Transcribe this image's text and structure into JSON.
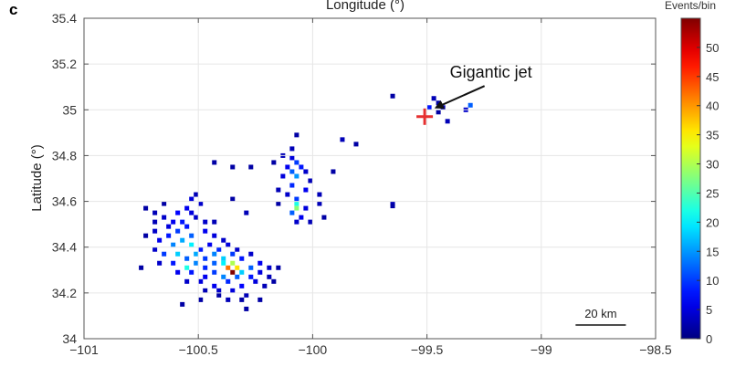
{
  "chart_data": {
    "type": "heatmap",
    "panel_label": "c",
    "xlabel": "Longitude (°)",
    "ylabel": "Latitude (°)",
    "xlim": [
      -101,
      -98.5
    ],
    "ylim": [
      34,
      35.4
    ],
    "xticks": [
      -101,
      -100.5,
      -100,
      -99.5,
      -99,
      -98.5
    ],
    "yticks": [
      34,
      34.2,
      34.4,
      34.6,
      34.8,
      35,
      35.2,
      35.4
    ],
    "x_tick_labels": [
      "−101",
      "−100.5",
      "−100",
      "−99.5",
      "−99",
      "−98.5"
    ],
    "y_tick_labels": [
      "34",
      "34.2",
      "34.4",
      "34.6",
      "34.8",
      "35",
      "35.2",
      "35.4"
    ],
    "grid": true,
    "colorbar": {
      "title": "Events/bin",
      "range": [
        0,
        55
      ],
      "ticks": [
        0,
        5,
        10,
        15,
        20,
        25,
        30,
        35,
        40,
        45,
        50
      ],
      "tick_labels": [
        "0",
        "5",
        "10",
        "15",
        "20",
        "25",
        "30",
        "35",
        "40",
        "45",
        "50"
      ],
      "colormap": "jet"
    },
    "bin_size_deg": 0.02,
    "bins": [
      [
        -99.65,
        35.06,
        2
      ],
      [
        -99.47,
        35.05,
        3
      ],
      [
        -99.45,
        35.03,
        2
      ],
      [
        -99.43,
        35.01,
        3
      ],
      [
        -99.49,
        35.01,
        8
      ],
      [
        -99.45,
        34.99,
        2
      ],
      [
        -99.41,
        34.95,
        3
      ],
      [
        -99.31,
        35.02,
        12
      ],
      [
        -99.33,
        35.0,
        4
      ],
      [
        -99.87,
        34.87,
        3
      ],
      [
        -99.81,
        34.85,
        2
      ],
      [
        -99.65,
        34.59,
        3
      ],
      [
        -99.65,
        34.58,
        2
      ],
      [
        -100.07,
        34.89,
        2
      ],
      [
        -100.09,
        34.83,
        3
      ],
      [
        -100.13,
        34.8,
        3
      ],
      [
        -100.09,
        34.79,
        5
      ],
      [
        -100.07,
        34.77,
        10
      ],
      [
        -100.05,
        34.75,
        8
      ],
      [
        -100.11,
        34.75,
        6
      ],
      [
        -100.03,
        34.73,
        4
      ],
      [
        -100.09,
        34.73,
        12
      ],
      [
        -100.13,
        34.71,
        5
      ],
      [
        -100.07,
        34.71,
        15
      ],
      [
        -100.01,
        34.69,
        3
      ],
      [
        -100.09,
        34.67,
        9
      ],
      [
        -100.03,
        34.65,
        6
      ],
      [
        -100.11,
        34.63,
        4
      ],
      [
        -100.07,
        34.61,
        10
      ],
      [
        -100.07,
        34.59,
        22
      ],
      [
        -100.07,
        34.57,
        28
      ],
      [
        -100.09,
        34.55,
        12
      ],
      [
        -100.03,
        34.57,
        5
      ],
      [
        -99.97,
        34.59,
        3
      ],
      [
        -100.05,
        34.53,
        6
      ],
      [
        -100.07,
        34.51,
        4
      ],
      [
        -100.01,
        34.51,
        3
      ],
      [
        -99.95,
        34.53,
        2
      ],
      [
        -99.91,
        34.73,
        2
      ],
      [
        -99.97,
        34.63,
        3
      ],
      [
        -100.15,
        34.59,
        2
      ],
      [
        -100.17,
        34.77,
        2
      ],
      [
        -100.15,
        34.65,
        3
      ],
      [
        -100.43,
        34.77,
        2
      ],
      [
        -100.35,
        34.75,
        2
      ],
      [
        -100.27,
        34.75,
        2
      ],
      [
        -100.35,
        34.61,
        2
      ],
      [
        -100.29,
        34.55,
        3
      ],
      [
        -100.51,
        34.63,
        3
      ],
      [
        -100.53,
        34.61,
        5
      ],
      [
        -100.49,
        34.59,
        4
      ],
      [
        -100.55,
        34.57,
        6
      ],
      [
        -100.59,
        34.55,
        7
      ],
      [
        -100.53,
        34.55,
        5
      ],
      [
        -100.69,
        34.55,
        3
      ],
      [
        -100.65,
        34.53,
        4
      ],
      [
        -100.61,
        34.51,
        6
      ],
      [
        -100.57,
        34.51,
        8
      ],
      [
        -100.51,
        34.53,
        4
      ],
      [
        -100.69,
        34.51,
        3
      ],
      [
        -100.63,
        34.49,
        5
      ],
      [
        -100.55,
        34.49,
        8
      ],
      [
        -100.47,
        34.51,
        4
      ],
      [
        -100.43,
        34.51,
        3
      ],
      [
        -100.69,
        34.47,
        4
      ],
      [
        -100.63,
        34.45,
        8
      ],
      [
        -100.59,
        34.47,
        10
      ],
      [
        -100.53,
        34.45,
        12
      ],
      [
        -100.47,
        34.47,
        6
      ],
      [
        -100.43,
        34.45,
        5
      ],
      [
        -100.39,
        34.43,
        4
      ],
      [
        -100.67,
        34.43,
        6
      ],
      [
        -100.61,
        34.41,
        14
      ],
      [
        -100.57,
        34.43,
        16
      ],
      [
        -100.53,
        34.41,
        20
      ],
      [
        -100.49,
        34.39,
        8
      ],
      [
        -100.45,
        34.41,
        6
      ],
      [
        -100.41,
        34.39,
        9
      ],
      [
        -100.37,
        34.41,
        5
      ],
      [
        -100.33,
        34.39,
        4
      ],
      [
        -100.69,
        34.39,
        4
      ],
      [
        -100.65,
        34.37,
        10
      ],
      [
        -100.59,
        34.37,
        18
      ],
      [
        -100.55,
        34.35,
        12
      ],
      [
        -100.51,
        34.37,
        16
      ],
      [
        -100.47,
        34.35,
        10
      ],
      [
        -100.43,
        34.37,
        14
      ],
      [
        -100.39,
        34.35,
        18
      ],
      [
        -100.35,
        34.37,
        10
      ],
      [
        -100.31,
        34.35,
        8
      ],
      [
        -100.27,
        34.37,
        4
      ],
      [
        -100.67,
        34.33,
        4
      ],
      [
        -100.61,
        34.33,
        8
      ],
      [
        -100.55,
        34.31,
        22
      ],
      [
        -100.51,
        34.33,
        14
      ],
      [
        -100.47,
        34.31,
        9
      ],
      [
        -100.43,
        34.33,
        12
      ],
      [
        -100.39,
        34.33,
        20
      ],
      [
        -100.37,
        34.31,
        42
      ],
      [
        -100.35,
        34.33,
        30
      ],
      [
        -100.33,
        34.31,
        36
      ],
      [
        -100.35,
        34.29,
        55
      ],
      [
        -100.31,
        34.29,
        18
      ],
      [
        -100.27,
        34.31,
        12
      ],
      [
        -100.23,
        34.33,
        6
      ],
      [
        -100.19,
        34.31,
        4
      ],
      [
        -100.15,
        34.31,
        2
      ],
      [
        -100.59,
        34.29,
        6
      ],
      [
        -100.53,
        34.29,
        8
      ],
      [
        -100.47,
        34.27,
        6
      ],
      [
        -100.43,
        34.29,
        10
      ],
      [
        -100.39,
        34.27,
        14
      ],
      [
        -100.33,
        34.27,
        12
      ],
      [
        -100.27,
        34.27,
        8
      ],
      [
        -100.23,
        34.29,
        5
      ],
      [
        -100.19,
        34.27,
        3
      ],
      [
        -100.55,
        34.25,
        4
      ],
      [
        -100.49,
        34.25,
        5
      ],
      [
        -100.43,
        34.23,
        6
      ],
      [
        -100.37,
        34.25,
        9
      ],
      [
        -100.31,
        34.23,
        7
      ],
      [
        -100.25,
        34.25,
        5
      ],
      [
        -100.21,
        34.23,
        3
      ],
      [
        -100.47,
        34.21,
        3
      ],
      [
        -100.41,
        34.21,
        4
      ],
      [
        -100.35,
        34.21,
        5
      ],
      [
        -100.29,
        34.19,
        3
      ],
      [
        -100.41,
        34.19,
        2
      ],
      [
        -100.37,
        34.17,
        3
      ],
      [
        -100.31,
        34.17,
        2
      ],
      [
        -100.57,
        34.15,
        2
      ],
      [
        -100.49,
        34.17,
        2
      ],
      [
        -100.75,
        34.31,
        2
      ],
      [
        -100.73,
        34.45,
        2
      ],
      [
        -100.73,
        34.57,
        2
      ],
      [
        -100.65,
        34.59,
        2
      ],
      [
        -100.29,
        34.13,
        2
      ],
      [
        -100.23,
        34.17,
        2
      ],
      [
        -100.17,
        34.25,
        2
      ]
    ],
    "marker": {
      "type": "plus",
      "lon": -99.51,
      "lat": 34.97,
      "color": "#e63030"
    },
    "annotations": [
      {
        "text": "Gigantic jet",
        "text_lon": -99.4,
        "text_lat": 35.14,
        "arrow_to_lon": -99.46,
        "arrow_to_lat": 35.01
      }
    ],
    "scale_bar": {
      "label": "20 km",
      "from_lon": -98.85,
      "to_lon": -98.63,
      "lat": 34.06
    }
  }
}
